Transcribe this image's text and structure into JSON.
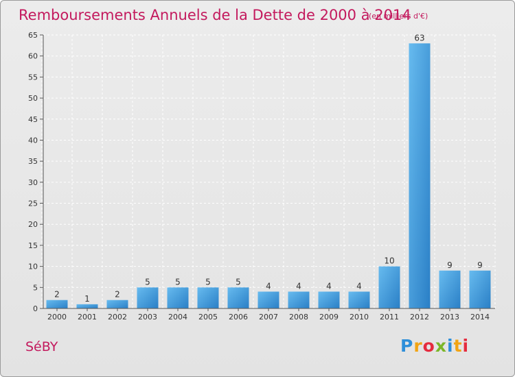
{
  "header": {
    "title": "Remboursements Annuels de la Dette de 2000 à 2014",
    "unit": "(en milliers d'€)"
  },
  "footer": {
    "commune": "SéBY",
    "logo_letters": [
      "P",
      "r",
      "o",
      "x",
      "i",
      "t",
      "i"
    ]
  },
  "colors": {
    "title": "#c3195d",
    "bar_light": "#5eb3ea",
    "bar_dark": "#2a7fc6",
    "gridline": "#ffffff",
    "background": "#e7e7e7"
  },
  "chart_data": {
    "type": "bar",
    "title": "Remboursements Annuels de la Dette de 2000 à 2014",
    "subtitle": "(en milliers d'€)",
    "xlabel": "",
    "ylabel": "",
    "categories": [
      "2000",
      "2001",
      "2002",
      "2003",
      "2004",
      "2005",
      "2006",
      "2007",
      "2008",
      "2009",
      "2010",
      "2011",
      "2012",
      "2013",
      "2014"
    ],
    "values": [
      2,
      1,
      2,
      5,
      5,
      5,
      5,
      4,
      4,
      4,
      4,
      10,
      63,
      9,
      9
    ],
    "ylim": [
      0,
      65
    ],
    "yticks": [
      0,
      5,
      10,
      15,
      20,
      25,
      30,
      35,
      40,
      45,
      50,
      55,
      60,
      65
    ],
    "grid": true,
    "data_labels": true
  }
}
